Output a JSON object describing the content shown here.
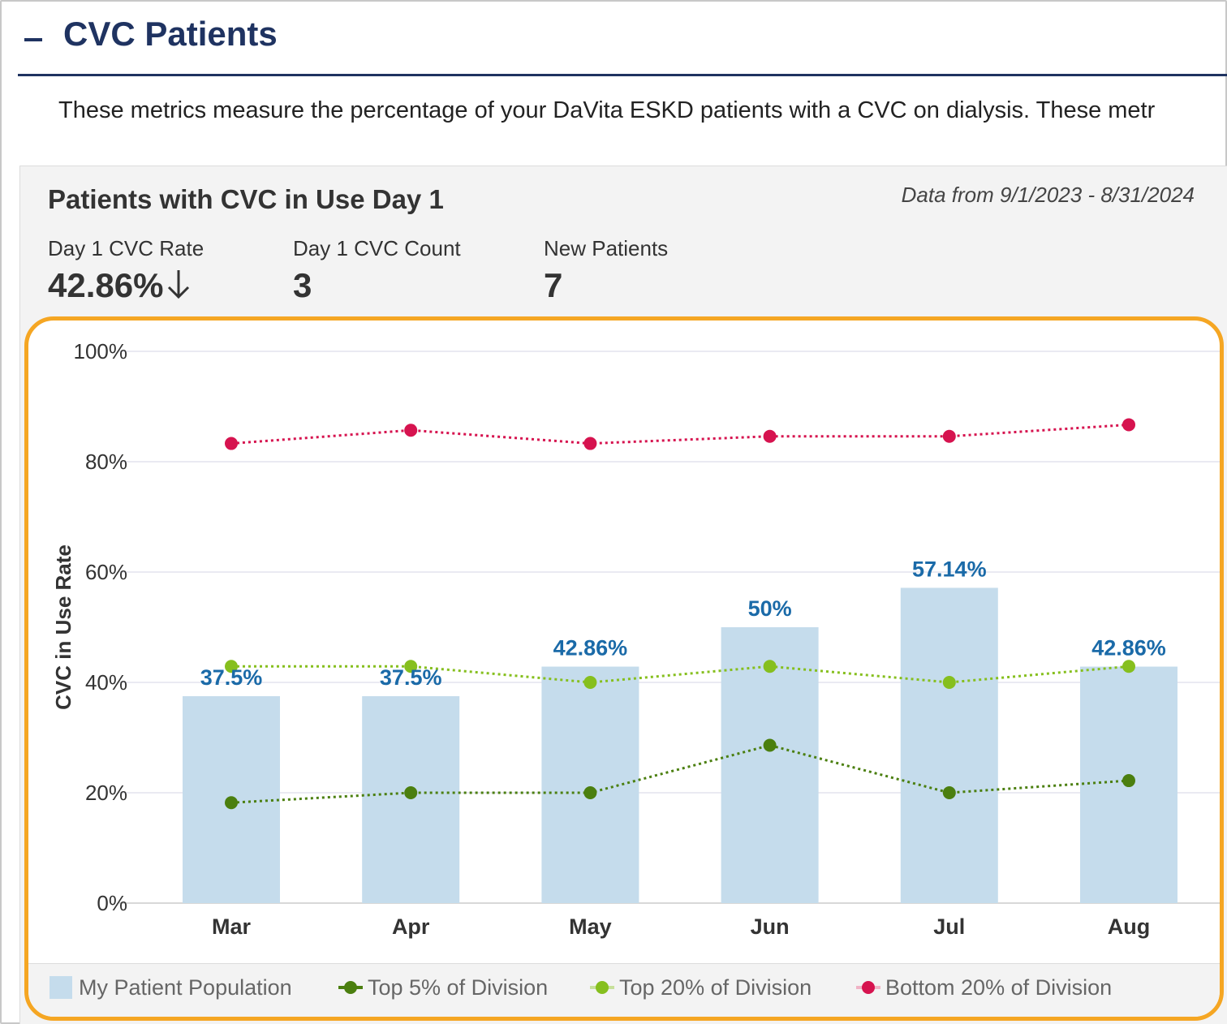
{
  "section": {
    "collapse_symbol": "−",
    "title": "CVC Patients",
    "description": "These metrics measure the percentage of your DaVita ESKD patients with a CVC on dialysis. These metr"
  },
  "card": {
    "title": "Patients with CVC in Use Day 1",
    "date_range": "Data from 9/1/2023 - 8/31/2024",
    "metrics": [
      {
        "label": "Day 1 CVC Rate",
        "value": "42.86%",
        "trend_icon": "arrow-down-icon"
      },
      {
        "label": "Day 1 CVC Count",
        "value": "3"
      },
      {
        "label": "New Patients",
        "value": "7"
      }
    ]
  },
  "colors": {
    "title_navy": "#1f3361",
    "bar_fill": "#c5dcec",
    "bar_label": "#1a6aa8",
    "top5": "#4b7f0f",
    "top20": "#86bf1e",
    "bottom20": "#d6134f",
    "highlight": "#f5a623"
  },
  "chart_data": {
    "type": "bar",
    "title": "Patients with CVC in Use Day 1",
    "xlabel": "",
    "ylabel": "CVC in Use Rate",
    "ylim": [
      0,
      100
    ],
    "yticks": [
      "0%",
      "20%",
      "40%",
      "60%",
      "80%",
      "100%"
    ],
    "ytick_values": [
      0,
      20,
      40,
      60,
      80,
      100
    ],
    "categories": [
      "Mar",
      "Apr",
      "May",
      "Jun",
      "Jul",
      "Aug"
    ],
    "bar_series": {
      "name": "My Patient Population",
      "values": [
        37.5,
        37.5,
        42.86,
        50,
        57.14,
        42.86
      ],
      "labels": [
        "37.5%",
        "37.5%",
        "42.86%",
        "50%",
        "57.14%",
        "42.86%"
      ]
    },
    "series": [
      {
        "name": "Top 5% of Division",
        "type": "line",
        "style": "dotted",
        "values": [
          18.2,
          20,
          20,
          28.6,
          20,
          22.2
        ]
      },
      {
        "name": "Top 20% of Division",
        "type": "line",
        "style": "dotted",
        "values": [
          42.9,
          42.9,
          40,
          42.9,
          40,
          42.9
        ]
      },
      {
        "name": "Bottom 20% of Division",
        "type": "line",
        "style": "dotted",
        "values": [
          83.3,
          85.7,
          83.3,
          84.6,
          84.6,
          86.7
        ]
      }
    ],
    "legend": {
      "position": "bottom",
      "entries": [
        "My Patient Population",
        "Top 5% of Division",
        "Top 20% of Division",
        "Bottom 20% of Division"
      ]
    },
    "grid": true
  }
}
